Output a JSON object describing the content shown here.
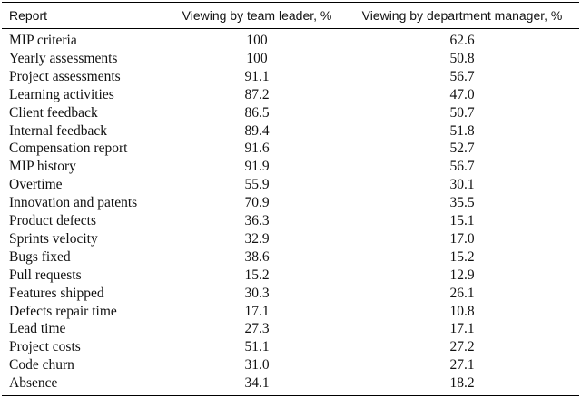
{
  "table": {
    "header": [
      "Report",
      "Viewing by team leader, %",
      "Viewing by department manager, %"
    ],
    "rows": [
      [
        "MIP criteria",
        "100",
        "62.6"
      ],
      [
        "Yearly assessments",
        "100",
        "50.8"
      ],
      [
        "Project assessments",
        "91.1",
        "56.7"
      ],
      [
        "Learning activities",
        "87.2",
        "47.0"
      ],
      [
        "Client feedback",
        "86.5",
        "50.7"
      ],
      [
        "Internal feedback",
        "89.4",
        "51.8"
      ],
      [
        "Compensation report",
        "91.6",
        "52.7"
      ],
      [
        "MIP history",
        "91.9",
        "56.7"
      ],
      [
        "Overtime",
        "55.9",
        "30.1"
      ],
      [
        "Innovation and patents",
        "70.9",
        "35.5"
      ],
      [
        "Product defects",
        "36.3",
        "15.1"
      ],
      [
        "Sprints velocity",
        "32.9",
        "17.0"
      ],
      [
        "Bugs fixed",
        "38.6",
        "15.2"
      ],
      [
        "Pull requests",
        "15.2",
        "12.9"
      ],
      [
        "Features shipped",
        "30.3",
        "26.1"
      ],
      [
        "Defects repair time",
        "17.1",
        "10.8"
      ],
      [
        "Lead time",
        "27.3",
        "17.1"
      ],
      [
        "Project costs",
        "51.1",
        "27.2"
      ],
      [
        "Code churn",
        "31.0",
        "27.1"
      ],
      [
        "Absence",
        "34.1",
        "18.2"
      ]
    ]
  }
}
